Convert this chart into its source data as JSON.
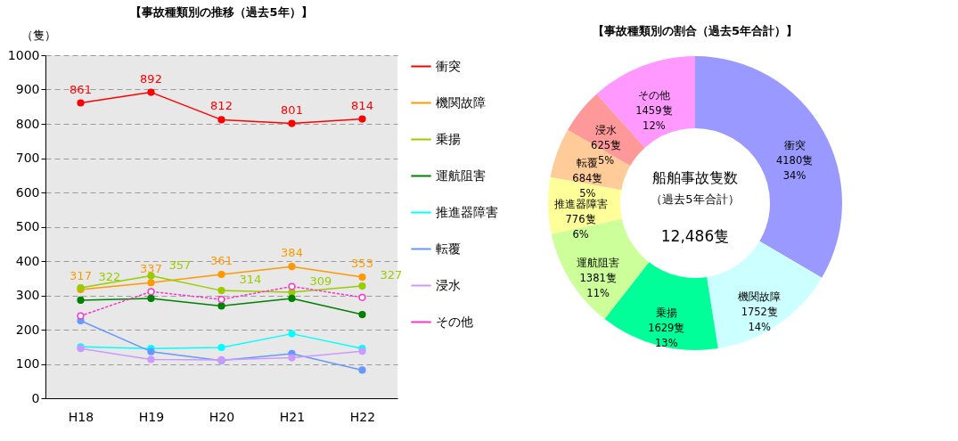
{
  "chart_data": [
    {
      "type": "line",
      "title": "【事故種類別の推移（過去5年）】",
      "ylabel": "（隻）",
      "categories": [
        "H18",
        "H19",
        "H20",
        "H21",
        "H22"
      ],
      "ylim": [
        0,
        1000
      ],
      "yticks": [
        0,
        100,
        200,
        300,
        400,
        500,
        600,
        700,
        800,
        900,
        1000
      ],
      "grid": "y",
      "legend": "right",
      "marker": "circle",
      "series": [
        {
          "name": "衝突",
          "color": "#ff0000",
          "values": [
            861,
            892,
            812,
            801,
            814
          ],
          "value_labels": [
            "861",
            "892",
            "812",
            "801",
            "814"
          ]
        },
        {
          "name": "機関故障",
          "color": "#ff9900",
          "values": [
            317,
            337,
            361,
            384,
            353
          ],
          "value_labels": [
            "317",
            "337",
            "361",
            "384",
            "353"
          ]
        },
        {
          "name": "乗揚",
          "color": "#99cc00",
          "values": [
            322,
            357,
            314,
            309,
            327
          ],
          "value_labels": [
            "322",
            "357",
            "314",
            "309",
            "327"
          ]
        },
        {
          "name": "運航阻害",
          "color": "#008000",
          "values": [
            286,
            291,
            269,
            291,
            244
          ]
        },
        {
          "name": "推進器障害",
          "color": "#00ffff",
          "values": [
            150,
            145,
            148,
            188,
            145
          ]
        },
        {
          "name": "転覆",
          "color": "#6699ff",
          "values": [
            226,
            136,
            110,
            130,
            82
          ]
        },
        {
          "name": "浸水",
          "color": "#cc99ff",
          "values": [
            145,
            113,
            112,
            118,
            137
          ]
        },
        {
          "name": "その他",
          "color": "#ff33cc",
          "values": [
            240,
            311,
            288,
            326,
            294
          ],
          "line_style": "dotted"
        }
      ]
    },
    {
      "type": "donut",
      "title": "【事故種類別の割合（過去5年合計）】",
      "categories": [
        "衝突",
        "機関故障",
        "乗揚",
        "運航阻害",
        "推進器障害",
        "転覆",
        "浸水",
        "その他"
      ],
      "values": [
        4180,
        1752,
        1629,
        1381,
        776,
        684,
        625,
        1459
      ],
      "colors": [
        "#9999ff",
        "#ccffff",
        "#00ff99",
        "#ccff99",
        "#ffff99",
        "#ffcc99",
        "#ff9999",
        "#ff99ff"
      ],
      "value_labels": [
        "4180隻\n34%",
        "1752隻\n14%",
        "1629隻\n13%",
        "1381隻\n11%",
        "776隻\n6%",
        "684隻\n5%",
        "625隻\n5%",
        "1459隻\n12%"
      ],
      "annotations": [
        "船舶事故隻数",
        "（過去5年合計）",
        "12,486隻"
      ]
    }
  ]
}
